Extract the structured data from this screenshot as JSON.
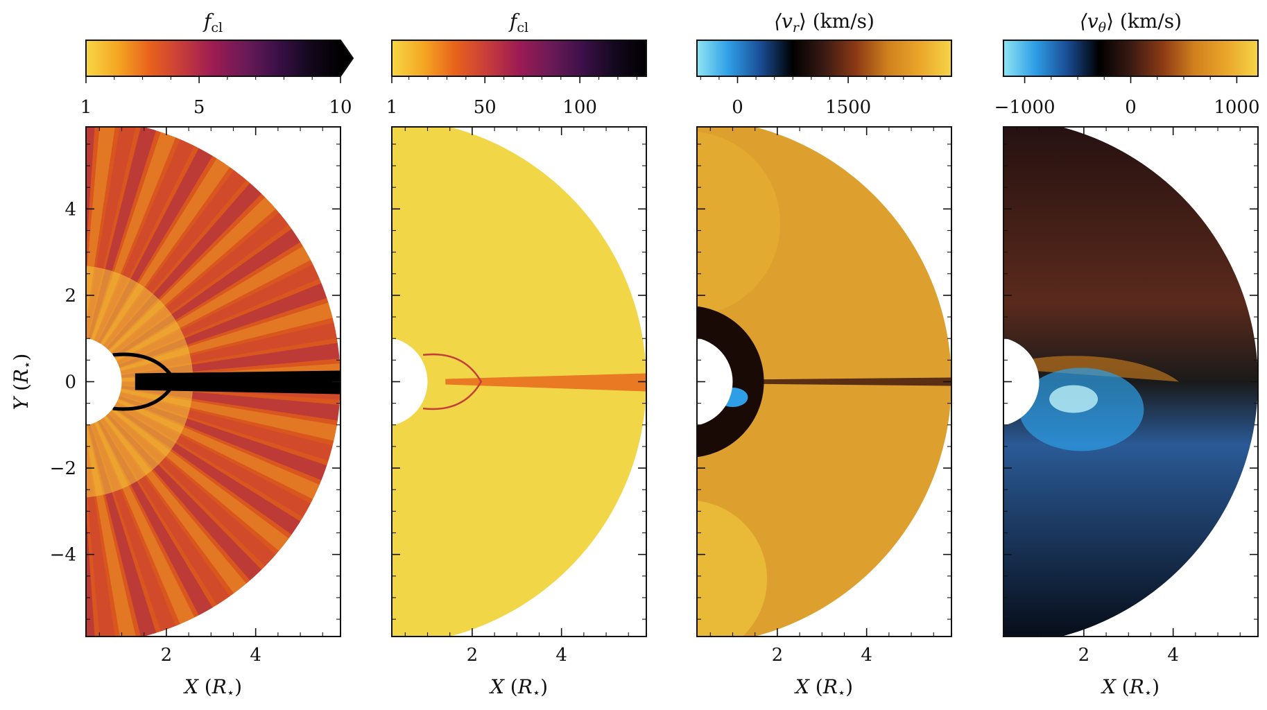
{
  "chart_data": [
    {
      "type": "heatmap",
      "panel": 1,
      "colorbar": {
        "label_main": "f",
        "label_sub": "cl",
        "label_rest": "",
        "colormap": "inferno_r",
        "colors": [
          "#f6d746",
          "#f5a623",
          "#e8621c",
          "#c73d3a",
          "#9c1b53",
          "#6b1a56",
          "#3c1049",
          "#14081e",
          "#000000"
        ],
        "range": [
          1,
          10
        ],
        "ticks": [
          1,
          5,
          10
        ],
        "tick_labels": [
          "1",
          "5",
          "10"
        ],
        "extend": "max"
      },
      "xlabel": "X (R⋆)",
      "ylabel": "Y (R⋆)",
      "xlim": [
        0.2,
        5.9
      ],
      "ylim": [
        -5.9,
        5.9
      ],
      "xticks": [
        2,
        4
      ],
      "xtick_labels": [
        "2",
        "4"
      ],
      "yticks": [
        -4,
        -2,
        0,
        2,
        4
      ],
      "ytick_labels": [
        "−4",
        "−2",
        "0",
        "2",
        "4"
      ]
    },
    {
      "type": "heatmap",
      "panel": 2,
      "colorbar": {
        "label_main": "f",
        "label_sub": "cl",
        "label_rest": "",
        "colormap": "inferno_r",
        "colors": [
          "#f6d746",
          "#f5a623",
          "#e8621c",
          "#c73d3a",
          "#9c1b53",
          "#6b1a56",
          "#3c1049",
          "#14081e",
          "#000000"
        ],
        "range": [
          1,
          135
        ],
        "ticks": [
          1,
          50,
          100
        ],
        "tick_labels": [
          "1",
          "50",
          "100"
        ],
        "extend": "neither"
      },
      "xlabel": "X (R⋆)",
      "xticks": [
        2,
        4
      ],
      "xtick_labels": [
        "2",
        "4"
      ],
      "xlim": [
        0.2,
        5.9
      ],
      "ylim": [
        -5.9,
        5.9
      ]
    },
    {
      "type": "heatmap",
      "panel": 3,
      "colorbar": {
        "label_main": "⟨v",
        "label_sub": "r",
        "label_rest": "⟩  (km/s)",
        "colormap": "diverging cyan-black-orange",
        "colors": [
          "#8fe4f2",
          "#2e9ee6",
          "#1a4d94",
          "#000000",
          "#3a1a14",
          "#8b3a14",
          "#d0801e",
          "#eaa62a",
          "#f5d448"
        ],
        "range": [
          -550,
          2900
        ],
        "ticks": [
          0,
          1500
        ],
        "tick_labels": [
          "0",
          "1500"
        ],
        "extend": "neither"
      },
      "xlabel": "X (R⋆)",
      "xticks": [
        2,
        4
      ],
      "xtick_labels": [
        "2",
        "4"
      ],
      "xlim": [
        0.2,
        5.9
      ],
      "ylim": [
        -5.9,
        5.9
      ]
    },
    {
      "type": "heatmap",
      "panel": 4,
      "colorbar": {
        "label_main": "⟨v",
        "label_sub": "θ",
        "label_rest": "⟩  (km/s)",
        "colormap": "diverging cyan-black-orange",
        "colors": [
          "#8fe4f2",
          "#2e9ee6",
          "#1a4d94",
          "#000000",
          "#3a1a14",
          "#8b3a14",
          "#d0801e",
          "#eaa62a",
          "#f5d448"
        ],
        "range": [
          -1200,
          1200
        ],
        "ticks": [
          -1000,
          0,
          1000
        ],
        "tick_labels": [
          "−1000",
          "0",
          "1000"
        ],
        "extend": "neither"
      },
      "xlabel": "X (R⋆)",
      "xticks": [
        2,
        4
      ],
      "xtick_labels": [
        "2",
        "4"
      ],
      "xlim": [
        0.2,
        5.9
      ],
      "ylim": [
        -5.9,
        5.9
      ]
    }
  ]
}
